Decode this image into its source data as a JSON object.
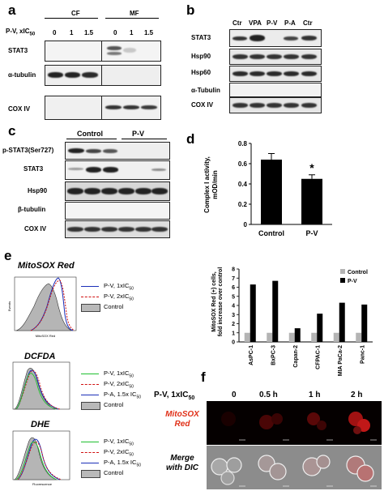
{
  "panel_labels": {
    "a": "a",
    "b": "b",
    "c": "c",
    "d": "d",
    "e": "e",
    "f": "f"
  },
  "panel_a": {
    "groups": [
      "CF",
      "MF"
    ],
    "row_header": "P-V, xIC",
    "row_header_sub": "50",
    "doses": [
      "0",
      "1",
      "1.5",
      "0",
      "1",
      "1.5"
    ],
    "rows": [
      "STAT3",
      "α-tubulin",
      "COX IV"
    ]
  },
  "panel_b": {
    "lanes": [
      "Ctr",
      "VPA",
      "P-V",
      "P-A",
      "Ctr"
    ],
    "rows": [
      "STAT3",
      "Hsp90",
      "Hsp60",
      "α-Tubulin",
      "COX IV"
    ]
  },
  "panel_c": {
    "groups": [
      "Control",
      "P-V"
    ],
    "rows": [
      "p-STAT3(Ser727)",
      "STAT3",
      "Hsp90",
      "β-tubulin",
      "COX IV"
    ]
  },
  "panel_d": {
    "ylabel_line1": "Complex I activity,",
    "ylabel_line2": "mOD/min",
    "significance": "*"
  },
  "panel_e": {
    "mitosox_title": "MitoSOX Red",
    "dcfda_title": "DCFDA",
    "dhe_title": "DHE",
    "ic": "IC",
    "sub50": "50",
    "mitosox_legend": [
      "P-V, 1xIC",
      "P-V, 2xIC",
      "Control"
    ],
    "dcfda_legend": [
      "P-V, 1xIC",
      "P-V, 2xIC",
      "P-A, 1.5x IC",
      "Control"
    ],
    "dhe_legend": [
      "P-V, 1xIC",
      "P-V, 2xIC",
      "P-A, 1.5x IC",
      "Control"
    ],
    "axis_events": "Events",
    "axis_mitosox": "MitoSOX Red",
    "axis_dhe": "Fluorescence"
  },
  "panel_f": {
    "row_header": "P-V, 1xIC",
    "row_header_sub": "50",
    "timepoints": [
      "0",
      "0.5 h",
      "1 h",
      "2 h"
    ],
    "row1_label_line1": "MitoSOX",
    "row1_label_line2": "Red",
    "row2_label_line1": "Merge",
    "row2_label_line2": "with DIC"
  },
  "chart_data": [
    {
      "type": "bar",
      "categories": [
        "Control",
        "P-V"
      ],
      "values": [
        0.64,
        0.45
      ],
      "errors": [
        0.06,
        0.04
      ],
      "ylabel": "Complex I activity, mOD/min",
      "ytick_labels": [
        "0",
        "0.2",
        "0.4",
        "0.6",
        "0.8"
      ],
      "ylim": [
        0,
        0.8
      ],
      "annotation": "*",
      "color": "#000000"
    },
    {
      "type": "bar",
      "categories": [
        "AsPC-1",
        "BxPC-3",
        "Capan-2",
        "CFPAC-1",
        "MIA PaCa-2",
        "Panc-1"
      ],
      "series": [
        {
          "name": "Control",
          "values": [
            1,
            1,
            1,
            1,
            1,
            1
          ],
          "color": "#b4b4b4"
        },
        {
          "name": "P-V",
          "values": [
            6.3,
            6.7,
            1.5,
            3.1,
            4.3,
            4.1
          ],
          "color": "#000000"
        }
      ],
      "ylabel": "MitoSOX Red (+) cells, fold increase over control",
      "ytick_labels": [
        "0",
        "1",
        "2",
        "3",
        "4",
        "5",
        "6",
        "7",
        "8"
      ],
      "ylim": [
        0,
        8
      ],
      "legend": "top-right"
    }
  ]
}
